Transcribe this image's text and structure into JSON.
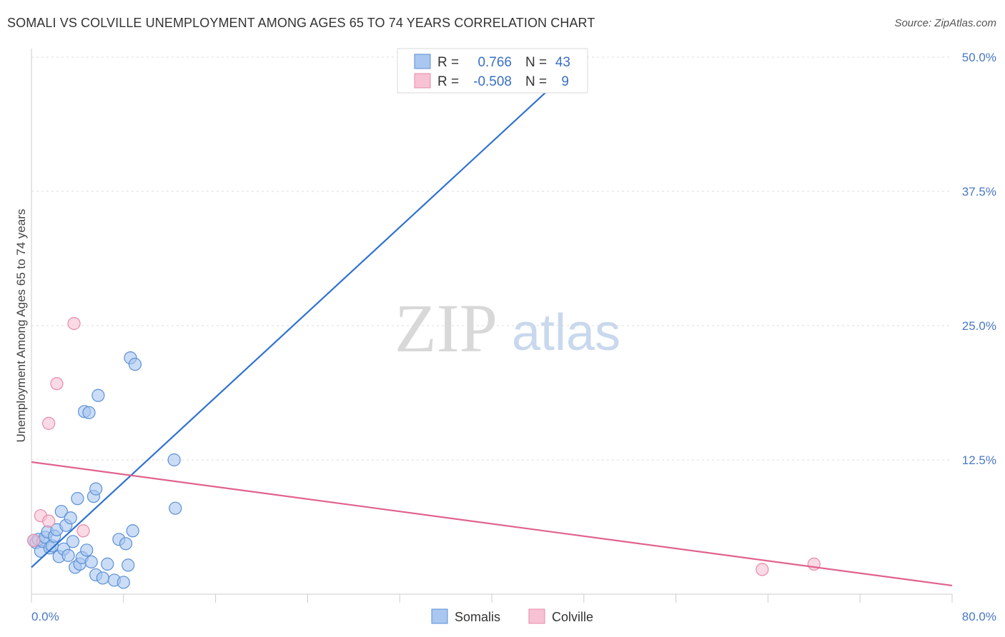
{
  "title": "SOMALI VS COLVILLE UNEMPLOYMENT AMONG AGES 65 TO 74 YEARS CORRELATION CHART",
  "source": "Source: ZipAtlas.com",
  "watermark": {
    "zip": "ZIP",
    "atlas": "atlas"
  },
  "legend": {
    "rows": [
      {
        "r_label": "R =",
        "r_value": "0.766",
        "n_label": "N =",
        "n_value": "43"
      },
      {
        "r_label": "R =",
        "r_value": "-0.508",
        "n_label": "N =",
        "n_value": "9"
      }
    ]
  },
  "bottom_legend": [
    {
      "label": "Somalis"
    },
    {
      "label": "Colville"
    }
  ],
  "colors": {
    "somalis_fill": "#a9c7f0",
    "somalis_stroke": "#5b8fd6",
    "somalis_line": "#2f72d0",
    "colville_fill": "#f7c2d3",
    "colville_stroke": "#e88aa8",
    "colville_line": "#e0628e",
    "grid": "#dddddd"
  },
  "chart_data": {
    "type": "scatter",
    "title": "SOMALI VS COLVILLE UNEMPLOYMENT AMONG AGES 65 TO 74 YEARS CORRELATION CHART",
    "xlabel": "",
    "ylabel": "Unemployment Among Ages 65 to 74 years",
    "xlim": [
      0,
      80
    ],
    "ylim": [
      0,
      50
    ],
    "x_tick_labels": [
      "0.0%",
      "80.0%"
    ],
    "y_ticks": [
      12.5,
      25.0,
      37.5,
      50.0
    ],
    "y_tick_labels": [
      "12.5%",
      "25.0%",
      "37.5%",
      "50.0%"
    ],
    "grid": "horizontal dashed",
    "legend_position": "top-center",
    "series": [
      {
        "name": "Somalis",
        "points": [
          [
            0.2,
            5.0
          ],
          [
            0.4,
            4.8
          ],
          [
            0.6,
            5.1
          ],
          [
            0.8,
            4.0
          ],
          [
            1.0,
            4.9
          ],
          [
            1.2,
            5.3
          ],
          [
            1.4,
            5.8
          ],
          [
            1.6,
            4.3
          ],
          [
            1.8,
            4.5
          ],
          [
            2.0,
            5.4
          ],
          [
            2.2,
            6.0
          ],
          [
            2.4,
            3.5
          ],
          [
            2.6,
            7.7
          ],
          [
            2.8,
            4.2
          ],
          [
            3.0,
            6.4
          ],
          [
            3.2,
            3.6
          ],
          [
            3.4,
            7.1
          ],
          [
            3.6,
            4.9
          ],
          [
            3.8,
            2.5
          ],
          [
            4.0,
            8.9
          ],
          [
            4.2,
            2.8
          ],
          [
            4.4,
            3.4
          ],
          [
            4.6,
            17.0
          ],
          [
            4.8,
            4.1
          ],
          [
            5.0,
            16.9
          ],
          [
            5.2,
            3.0
          ],
          [
            5.4,
            9.1
          ],
          [
            5.6,
            9.8
          ],
          [
            5.8,
            18.5
          ],
          [
            5.6,
            1.8
          ],
          [
            6.2,
            1.5
          ],
          [
            6.6,
            2.8
          ],
          [
            7.2,
            1.3
          ],
          [
            7.6,
            5.1
          ],
          [
            8.0,
            1.1
          ],
          [
            8.2,
            4.7
          ],
          [
            8.4,
            2.7
          ],
          [
            8.6,
            22.0
          ],
          [
            8.8,
            5.9
          ],
          [
            9.0,
            21.4
          ],
          [
            12.4,
            12.5
          ],
          [
            12.5,
            8.0
          ],
          [
            41.5,
            48.5
          ]
        ],
        "trend_line": {
          "x": [
            0,
            48
          ],
          "y": [
            2.5,
            50.0
          ]
        }
      },
      {
        "name": "Colville",
        "points": [
          [
            0.2,
            5.0
          ],
          [
            0.8,
            7.3
          ],
          [
            1.5,
            6.8
          ],
          [
            1.5,
            15.9
          ],
          [
            2.2,
            19.6
          ],
          [
            4.5,
            5.9
          ],
          [
            3.7,
            25.2
          ],
          [
            63.5,
            2.3
          ],
          [
            68.0,
            2.8
          ]
        ],
        "trend_line": {
          "x": [
            0,
            80
          ],
          "y": [
            12.3,
            0.8
          ]
        }
      }
    ]
  }
}
